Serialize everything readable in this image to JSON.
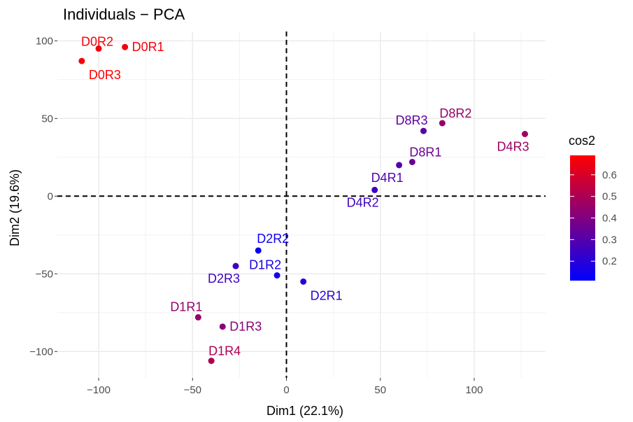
{
  "chart_data": {
    "type": "scatter",
    "title": "Individuals − PCA",
    "xlabel": "Dim1 (22.1%)",
    "ylabel": "Dim2 (19.6%)",
    "xlim": [
      -122,
      138
    ],
    "ylim": [
      -117,
      106
    ],
    "xticks": [
      -100,
      -50,
      0,
      50,
      100
    ],
    "yticks": [
      100,
      50,
      0,
      -50,
      -100
    ],
    "xtick_labels": [
      "−100",
      "−50",
      "0",
      "50",
      "100"
    ],
    "ytick_labels": [
      "100",
      "50",
      "0",
      "−50",
      "−100"
    ],
    "grid": true,
    "reference_lines": [
      {
        "axis": "x",
        "value": 0,
        "style": "dashed"
      },
      {
        "axis": "y",
        "value": 0,
        "style": "dashed"
      }
    ],
    "legend": {
      "title": "cos2",
      "placement": "right",
      "low_color": "#0000ff",
      "mid_color": "#800080",
      "high_color": "#ff0000",
      "range": [
        0.11,
        0.69
      ],
      "ticks": [
        0.2,
        0.3,
        0.4,
        0.5,
        0.6
      ],
      "tick_labels": [
        "0.2",
        "0.3",
        "0.4",
        "0.5",
        "0.6"
      ]
    },
    "points": [
      {
        "label": "D0R1",
        "x": -86,
        "y": 96,
        "cos2": 0.66,
        "label_pos": "right"
      },
      {
        "label": "D0R2",
        "x": -100,
        "y": 95,
        "cos2": 0.67,
        "label_pos": "left-top"
      },
      {
        "label": "D0R3",
        "x": -109,
        "y": 87,
        "cos2": 0.68,
        "label_pos": "below-right"
      },
      {
        "label": "D8R2",
        "x": 83,
        "y": 47,
        "cos2": 0.45,
        "label_pos": "above-right"
      },
      {
        "label": "D8R3",
        "x": 73,
        "y": 42,
        "cos2": 0.32,
        "label_pos": "above-left"
      },
      {
        "label": "D4R3",
        "x": 127,
        "y": 40,
        "cos2": 0.47,
        "label_pos": "below-left"
      },
      {
        "label": "D8R1",
        "x": 67,
        "y": 22,
        "cos2": 0.35,
        "label_pos": "above-right"
      },
      {
        "label": "D4R1",
        "x": 60,
        "y": 20,
        "cos2": 0.3,
        "label_pos": "below-left"
      },
      {
        "label": "D4R2",
        "x": 47,
        "y": 4,
        "cos2": 0.25,
        "label_pos": "below-left"
      },
      {
        "label": "D2R2",
        "x": -15,
        "y": -35,
        "cos2": 0.14,
        "label_pos": "above"
      },
      {
        "label": "D2R3",
        "x": -27,
        "y": -45,
        "cos2": 0.25,
        "label_pos": "below-left"
      },
      {
        "label": "D1R2",
        "x": -5,
        "y": -51,
        "cos2": 0.16,
        "label_pos": "above-left"
      },
      {
        "label": "D2R1",
        "x": 9,
        "y": -55,
        "cos2": 0.2,
        "label_pos": "below-right"
      },
      {
        "label": "D1R1",
        "x": -47,
        "y": -78,
        "cos2": 0.45,
        "label_pos": "above-left"
      },
      {
        "label": "D1R3",
        "x": -34,
        "y": -84,
        "cos2": 0.42,
        "label_pos": "right"
      },
      {
        "label": "D1R4",
        "x": -40,
        "y": -106,
        "cos2": 0.5,
        "label_pos": "above-right"
      }
    ]
  }
}
